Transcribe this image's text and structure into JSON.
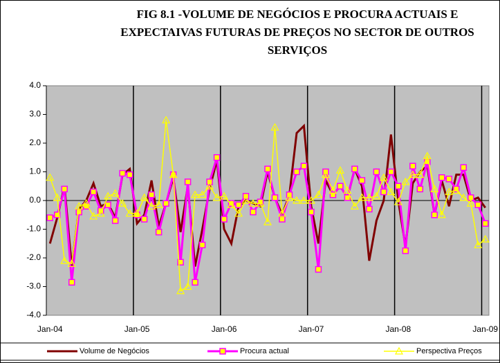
{
  "chart_data": {
    "type": "line",
    "title": "FIG 8.1 -VOLUME DE NEGÓCIOS E PROCURA ACTUAIS E EXPECTAIVAS FUTURAS DE PREÇOS NO SECTOR DE OUTROS SERVIÇOS",
    "categories": [
      "Jan-04",
      null,
      null,
      null,
      null,
      null,
      null,
      null,
      null,
      null,
      null,
      null,
      "Jan-05",
      null,
      null,
      null,
      null,
      null,
      null,
      null,
      null,
      null,
      null,
      null,
      "Jan-06",
      null,
      null,
      null,
      null,
      null,
      null,
      null,
      null,
      null,
      null,
      null,
      "Jan-07",
      null,
      null,
      null,
      null,
      null,
      null,
      null,
      null,
      null,
      null,
      null,
      "Jan-08",
      null,
      null,
      null,
      null,
      null,
      null,
      null,
      null,
      null,
      null,
      null,
      "Jan-09"
    ],
    "ylim": [
      -4,
      4
    ],
    "yticks": [
      {
        "value": -4,
        "label": "-4.0"
      },
      {
        "value": -3,
        "label": "-3.0"
      },
      {
        "value": -2,
        "label": "-2.0"
      },
      {
        "value": -1,
        "label": "-1.0"
      },
      {
        "value": 0,
        "label": "0.0"
      },
      {
        "value": 1,
        "label": "1.0"
      },
      {
        "value": 2,
        "label": "2.0"
      },
      {
        "value": 3,
        "label": "3.0"
      },
      {
        "value": 4,
        "label": "4.0"
      }
    ],
    "legend": "bottom",
    "series": [
      {
        "name": "Volume de Negócios",
        "color": "#800000",
        "marker": "none",
        "values": [
          -1.5,
          -0.6,
          0.5,
          -2.3,
          -0.3,
          0.0,
          0.6,
          -0.2,
          -0.1,
          -0.6,
          0.9,
          1.1,
          -0.8,
          -0.5,
          0.7,
          -0.9,
          -0.1,
          0.8,
          -1.1,
          0.5,
          -2.3,
          -1.0,
          0.4,
          1.4,
          -1.0,
          -1.5,
          -0.2,
          0.0,
          -0.1,
          -0.2,
          1.0,
          0.1,
          -0.5,
          0.2,
          2.35,
          2.6,
          -0.2,
          -1.5,
          0.7,
          0.2,
          0.5,
          0.1,
          1.1,
          0.5,
          -2.1,
          -0.7,
          0.0,
          2.3,
          0.0,
          -1.6,
          0.6,
          1.0,
          1.2,
          -0.5,
          0.7,
          -0.2,
          0.9,
          0.9,
          0.0,
          0.1,
          -0.25
        ]
      },
      {
        "name": "Procura actual",
        "color": "#ff00ff",
        "marker": "square",
        "marker_fill": "#ffff00",
        "values": [
          -0.6,
          -0.5,
          0.4,
          -2.85,
          -0.4,
          -0.2,
          0.3,
          -0.35,
          -0.15,
          -0.7,
          0.95,
          0.9,
          -0.5,
          -0.65,
          0.2,
          -1.1,
          -0.1,
          0.9,
          -2.15,
          0.65,
          -2.85,
          -1.55,
          0.65,
          1.5,
          -0.65,
          -0.1,
          -0.15,
          0.15,
          -0.4,
          -0.05,
          1.1,
          0.1,
          -0.65,
          0.2,
          1.0,
          1.2,
          -0.4,
          -2.4,
          1.0,
          0.2,
          0.5,
          0.1,
          1.1,
          0.7,
          -0.3,
          1.0,
          0.3,
          1.0,
          0.5,
          -1.75,
          1.2,
          0.4,
          1.35,
          -0.5,
          0.8,
          0.75,
          0.4,
          1.15,
          0.1,
          -0.15,
          -0.8
        ]
      },
      {
        "name": "Perspectiva Preços",
        "color": "#ffff00",
        "marker": "triangle",
        "values": [
          0.8,
          0.1,
          -2.1,
          -2.2,
          -0.2,
          -0.1,
          -0.55,
          -0.45,
          0.15,
          0.25,
          -0.1,
          -0.45,
          -0.45,
          0.1,
          -0.2,
          -0.15,
          2.8,
          0.9,
          -3.15,
          -3.0,
          0.2,
          0.2,
          0.5,
          0.1,
          0.15,
          -0.15,
          -0.45,
          0.0,
          -0.1,
          -0.1,
          -0.75,
          2.55,
          -0.45,
          0.1,
          0.0,
          0.0,
          0.0,
          0.2,
          0.9,
          0.35,
          1.05,
          0.35,
          -0.2,
          0.1,
          0.1,
          0.15,
          0.8,
          0.3,
          -0.05,
          0.65,
          0.9,
          0.9,
          1.55,
          0.4,
          -0.5,
          0.3,
          0.35,
          0.1,
          -0.1,
          -1.55,
          -1.35
        ]
      }
    ]
  }
}
